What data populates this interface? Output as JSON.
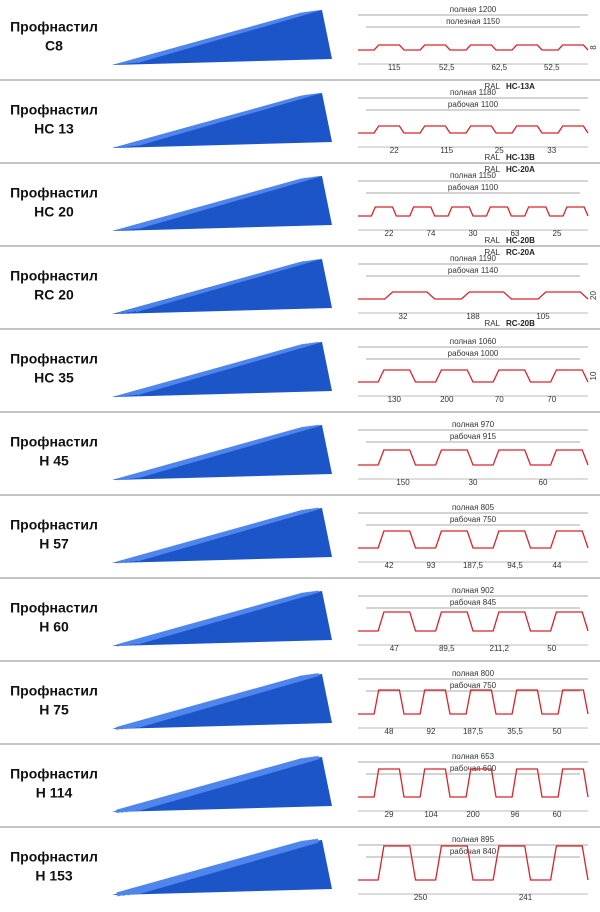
{
  "rows": [
    {
      "label": "Профнастил",
      "model": "С8",
      "total": "полная 1200",
      "working": "полезная 1150",
      "dims": [
        "115",
        "52,5",
        "62,5",
        "52,5"
      ],
      "height": "8"
    },
    {
      "label": "Профнастил",
      "model": "НС 13",
      "top_mark": {
        "ral": "RAL",
        "code": "НС-13А"
      },
      "total": "полная 1180",
      "working": "рабочая 1100",
      "dims": [
        "22",
        "115",
        "25",
        "33"
      ],
      "bottom_mark": {
        "ral": "RAL",
        "code": "НС-13В"
      }
    },
    {
      "label": "Профнастил",
      "model": "НС 20",
      "top_mark": {
        "ral": "RAL",
        "code": "НС-20А"
      },
      "total": "полная 1150",
      "working": "рабочая 1100",
      "dims": [
        "22",
        "74",
        "30",
        "63",
        "25"
      ],
      "bottom_mark": {
        "ral": "RAL",
        "code": "НС-20В"
      }
    },
    {
      "label": "Профнастил",
      "model": "RC 20",
      "top_mark": {
        "ral": "RAL",
        "code": "RC-20А"
      },
      "total": "полная 1190",
      "working": "рабочая 1140",
      "dims": [
        "32",
        "188",
        "105"
      ],
      "height": "20",
      "bottom_mark": {
        "ral": "RAL",
        "code": "RC-20В"
      }
    },
    {
      "label": "Профнастил",
      "model": "НС 35",
      "total": "полная 1060",
      "working": "рабочая 1000",
      "dims": [
        "130",
        "200",
        "70",
        "70"
      ],
      "height": "10"
    },
    {
      "label": "Профнастил",
      "model": "Н 45",
      "total": "полная 970",
      "working": "рабочая 915",
      "dims": [
        "150",
        "30",
        "60"
      ]
    },
    {
      "label": "Профнастил",
      "model": "Н 57",
      "total": "полная 805",
      "working": "рабочая 750",
      "dims": [
        "42",
        "93",
        "187,5",
        "94,5",
        "44"
      ]
    },
    {
      "label": "Профнастил",
      "model": "Н 60",
      "total": "полная 902",
      "working": "рабочая 845",
      "dims": [
        "47",
        "89,5",
        "211,2",
        "50"
      ]
    },
    {
      "label": "Профнастил",
      "model": "Н 75",
      "total": "полная 800",
      "working": "рабочая 750",
      "dims": [
        "48",
        "92",
        "187,5",
        "35,5",
        "50"
      ]
    },
    {
      "label": "Профнастил",
      "model": "Н 114",
      "total": "полная 653",
      "working": "рабочая 600",
      "dims": [
        "29",
        "104",
        "200",
        "96",
        "60"
      ]
    },
    {
      "label": "Профнастил",
      "model": "Н 153",
      "total": "полная 895",
      "working": "рабочая 840",
      "dims": [
        "250",
        "241"
      ]
    }
  ]
}
